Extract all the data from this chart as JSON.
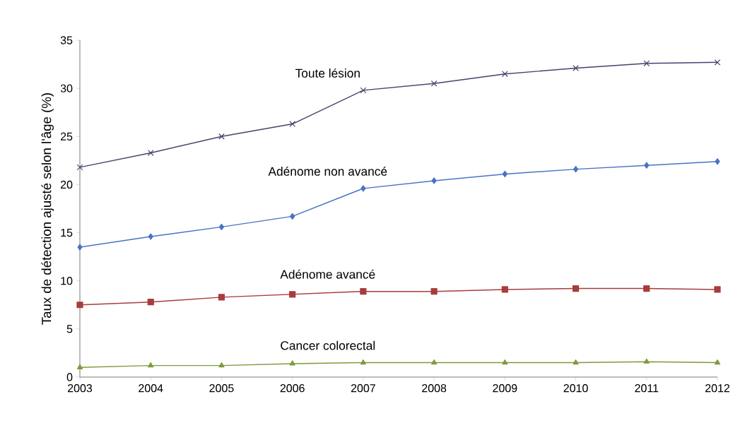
{
  "chart_data": {
    "type": "line",
    "ylabel": "Taux de détection ajusté selon l'âge (%)",
    "x": [
      2003,
      2004,
      2005,
      2006,
      2007,
      2008,
      2009,
      2010,
      2011,
      2012
    ],
    "xlim": [
      2003,
      2012
    ],
    "xticks": [
      2003,
      2004,
      2005,
      2006,
      2007,
      2008,
      2009,
      2010,
      2011,
      2012
    ],
    "ylim": [
      0,
      35
    ],
    "yticks": [
      0,
      5,
      10,
      15,
      20,
      25,
      30,
      35
    ],
    "line_style": "solid",
    "series": [
      {
        "name": "Toute lésion",
        "color": "#4f3e6e",
        "marker": "cross",
        "values": [
          21.8,
          23.3,
          25.0,
          26.3,
          29.8,
          30.5,
          31.5,
          32.1,
          32.6,
          32.7
        ]
      },
      {
        "name": "Adénome non avancé",
        "color": "#4a72c4",
        "marker": "diamond",
        "values": [
          13.5,
          14.6,
          15.6,
          16.7,
          19.6,
          20.4,
          21.1,
          21.6,
          22.0,
          22.4
        ]
      },
      {
        "name": "Adénome avancé",
        "color": "#a83c3c",
        "marker": "square",
        "values": [
          7.5,
          7.8,
          8.3,
          8.6,
          8.9,
          8.9,
          9.1,
          9.2,
          9.2,
          9.1
        ]
      },
      {
        "name": "Cancer colorectal",
        "color": "#7f9a3c",
        "marker": "triangle",
        "values": [
          1.0,
          1.2,
          1.2,
          1.4,
          1.5,
          1.5,
          1.5,
          1.5,
          1.6,
          1.5
        ]
      }
    ]
  }
}
